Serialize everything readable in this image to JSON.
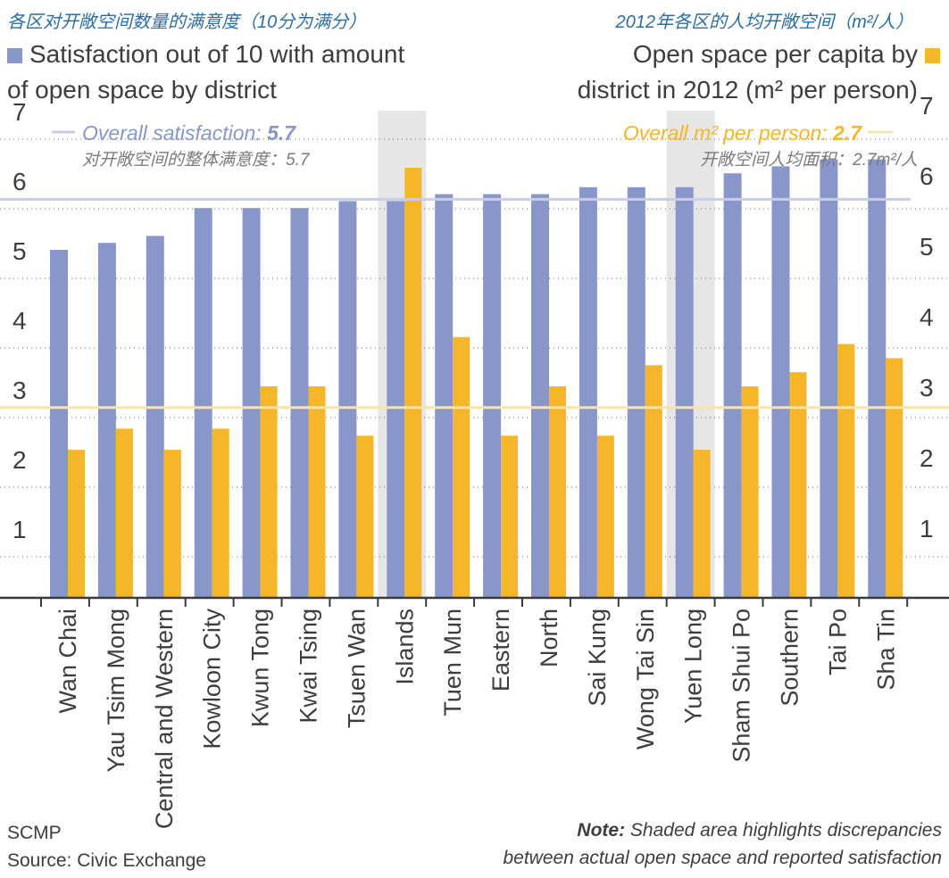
{
  "header": {
    "left_cn": "各区对开敞空间数量的满意度（10分为满分）",
    "left_en_line1": "Satisfaction out of 10 with amount",
    "left_en_line2": "of open space by district",
    "right_cn": "2012年各区的人均开敞空间（m²/人）",
    "right_en_line1": "Open space per capita by",
    "right_en_line2": "district in 2012 (m² per person)"
  },
  "footer": {
    "credit": "SCMP",
    "source": "Source: Civic Exchange",
    "note_lead": "Note:",
    "note_line1": "Shaded area highlights discrepancies",
    "note_line2": "between actual open space and reported satisfaction"
  },
  "colors": {
    "satisfaction": "#8896c9",
    "open_space": "#f5b62a",
    "sat_avg_line": "#c9cde6",
    "space_avg_line": "#f8e3aa",
    "shade": "#e6e6e6",
    "sat_text": "#8896c9",
    "space_text": "#f5b62a"
  },
  "chart_data": {
    "type": "bar",
    "categories": [
      "Wan Chai",
      "Yau Tsim Mong",
      "Central and Western",
      "Kowloon City",
      "Kwun Tong",
      "Kwai Tsing",
      "Tsuen Wan",
      "Islands",
      "Tuen Mun",
      "Eastern",
      "North",
      "Sai Kung",
      "Wong Tai Sin",
      "Yuen Long",
      "Sham Shui Po",
      "Southern",
      "Tai Po",
      "Sha Tin"
    ],
    "series": [
      {
        "name": "Satisfaction out of 10 with amount of open space by district",
        "axis": "left",
        "values": [
          5.0,
          5.1,
          5.2,
          5.6,
          5.6,
          5.6,
          5.7,
          5.7,
          5.8,
          5.8,
          5.8,
          5.9,
          5.9,
          5.9,
          6.1,
          6.2,
          6.3,
          6.3
        ]
      },
      {
        "name": "Open space per capita by district in 2012 (m² per person)",
        "axis": "right",
        "values": [
          2.1,
          2.4,
          2.1,
          2.4,
          3.0,
          3.0,
          2.3,
          6.1,
          3.7,
          2.3,
          3.0,
          2.3,
          3.3,
          2.1,
          3.0,
          3.2,
          3.6,
          3.4
        ]
      }
    ],
    "left_axis": {
      "ylim": [
        0,
        7
      ],
      "ticks": [
        "1",
        "2",
        "3",
        "4",
        "5",
        "6",
        "7"
      ]
    },
    "right_axis": {
      "ylim": [
        0,
        7
      ],
      "ticks": [
        "1",
        "2",
        "3",
        "4",
        "5",
        "6",
        "7"
      ]
    },
    "reference_lines": [
      {
        "axis": "left",
        "value": 5.7,
        "label_prefix": "Overall satisfaction: ",
        "label_value": "5.7",
        "label_cn": "对开敞空间的整体满意度：5.7"
      },
      {
        "axis": "right",
        "value": 2.7,
        "label_prefix": "Overall m² per person: ",
        "label_value": "2.7",
        "label_cn": "开敞空间人均面积：2.7m²/人"
      }
    ],
    "shaded_categories": [
      "Islands",
      "Yuen Long"
    ],
    "grid": "dotted horizontal"
  }
}
